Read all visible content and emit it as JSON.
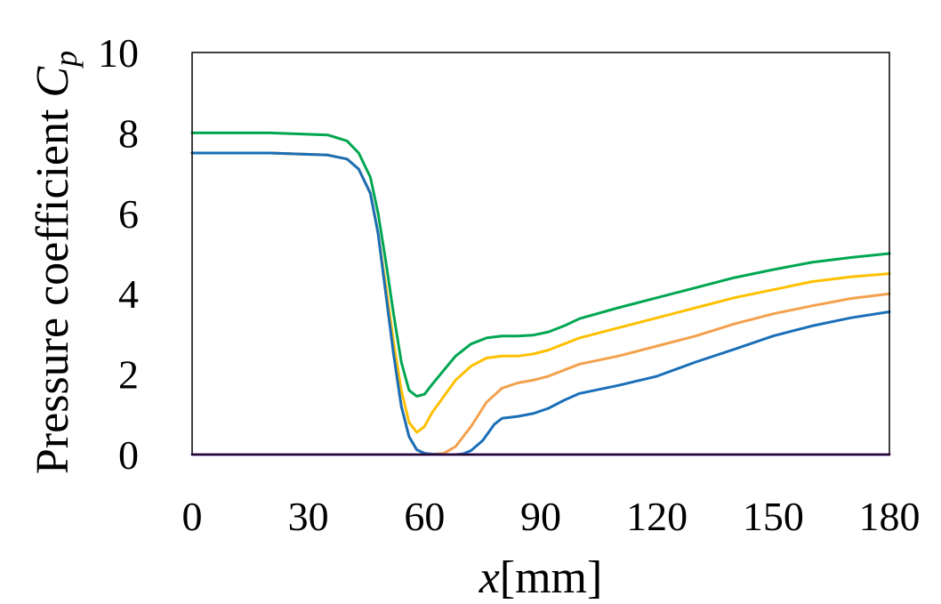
{
  "chart_data": {
    "type": "line",
    "title": "",
    "xlabel": {
      "var": "x",
      "unit": "[mm]"
    },
    "ylabel": {
      "text": "Pressure coefficient ",
      "var": "C",
      "sub": "p"
    },
    "xlim": [
      0,
      180
    ],
    "ylim": [
      0,
      10
    ],
    "xticks": [
      "0",
      "30",
      "60",
      "90",
      "120",
      "150",
      "180"
    ],
    "yticks": [
      "0",
      "2",
      "4",
      "6",
      "8",
      "10"
    ],
    "grid": false,
    "legend": "none",
    "series": [
      {
        "color": "#00a651",
        "x": [
          0,
          20,
          35,
          40,
          43,
          46,
          48,
          50,
          52,
          54,
          56,
          58,
          60,
          62,
          65,
          68,
          72,
          76,
          80,
          84,
          88,
          92,
          96,
          100,
          110,
          120,
          130,
          140,
          150,
          160,
          170,
          180
        ],
        "y": [
          8.0,
          8.0,
          7.95,
          7.8,
          7.5,
          6.9,
          6.0,
          4.8,
          3.5,
          2.3,
          1.6,
          1.45,
          1.5,
          1.75,
          2.1,
          2.45,
          2.75,
          2.9,
          2.95,
          2.95,
          2.97,
          3.05,
          3.2,
          3.38,
          3.65,
          3.9,
          4.15,
          4.4,
          4.6,
          4.78,
          4.9,
          5.0
        ]
      },
      {
        "color": "#ffc000",
        "x": [
          0,
          20,
          35,
          40,
          43,
          46,
          48,
          50,
          52,
          54,
          56,
          58,
          60,
          62,
          65,
          68,
          72,
          76,
          80,
          84,
          88,
          92,
          96,
          100,
          110,
          120,
          130,
          140,
          150,
          160,
          170,
          180
        ],
        "y": [
          7.5,
          7.5,
          7.45,
          7.35,
          7.1,
          6.5,
          5.5,
          4.2,
          2.8,
          1.6,
          0.8,
          0.55,
          0.7,
          1.05,
          1.45,
          1.85,
          2.2,
          2.4,
          2.45,
          2.45,
          2.5,
          2.6,
          2.75,
          2.9,
          3.15,
          3.4,
          3.65,
          3.9,
          4.1,
          4.3,
          4.42,
          4.5
        ]
      },
      {
        "color": "#f4a14d",
        "x": [
          0,
          20,
          35,
          40,
          43,
          46,
          48,
          50,
          52,
          54,
          56,
          58,
          60,
          62,
          65,
          68,
          72,
          76,
          80,
          84,
          88,
          92,
          96,
          100,
          110,
          120,
          130,
          140,
          150,
          160,
          170,
          180
        ],
        "y": [
          7.5,
          7.5,
          7.45,
          7.35,
          7.1,
          6.5,
          5.5,
          4.0,
          2.5,
          1.2,
          0.45,
          0.12,
          0.03,
          0.01,
          0.03,
          0.2,
          0.7,
          1.3,
          1.65,
          1.78,
          1.85,
          1.95,
          2.1,
          2.25,
          2.45,
          2.7,
          2.95,
          3.25,
          3.5,
          3.7,
          3.88,
          4.0
        ]
      },
      {
        "color": "#1a6fb8",
        "x": [
          0,
          20,
          35,
          40,
          43,
          46,
          48,
          50,
          52,
          54,
          56,
          58,
          60,
          62,
          65,
          68,
          70,
          72,
          75,
          78,
          80,
          84,
          88,
          92,
          96,
          100,
          110,
          120,
          130,
          140,
          150,
          160,
          170,
          180
        ],
        "y": [
          7.5,
          7.5,
          7.45,
          7.35,
          7.1,
          6.5,
          5.5,
          4.0,
          2.5,
          1.2,
          0.45,
          0.12,
          0.03,
          0.01,
          0.0,
          0.0,
          0.02,
          0.1,
          0.35,
          0.75,
          0.9,
          0.95,
          1.02,
          1.15,
          1.35,
          1.52,
          1.72,
          1.95,
          2.3,
          2.62,
          2.95,
          3.2,
          3.4,
          3.55
        ]
      },
      {
        "color": "#7030a0",
        "x": [
          0,
          180
        ],
        "y": [
          0,
          0
        ]
      }
    ]
  }
}
